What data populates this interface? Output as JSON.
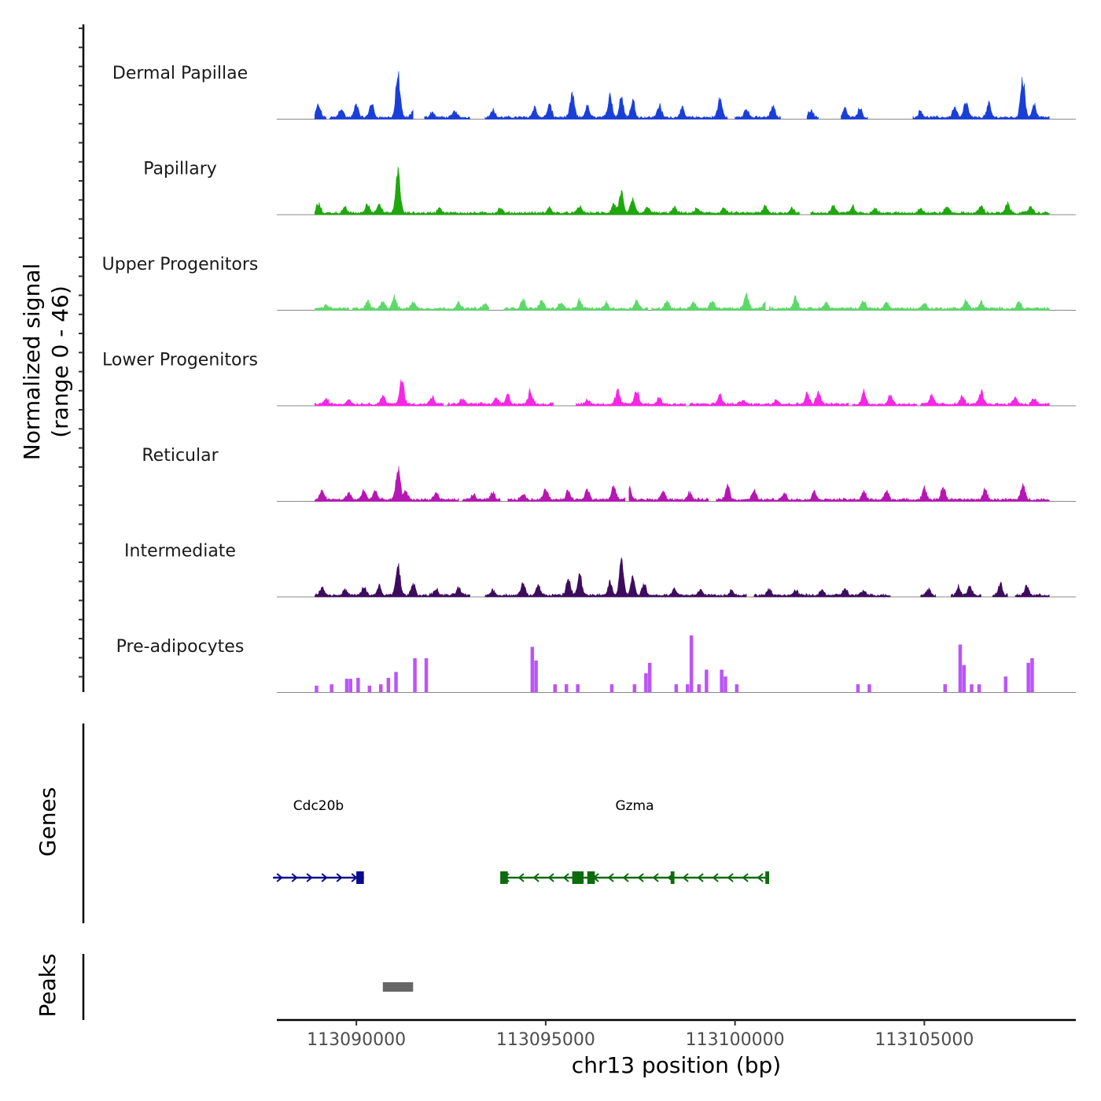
{
  "chart_data": {
    "type": "area",
    "title": "",
    "xlabel": "chr13 position (bp)",
    "ylabel": [
      "Normalized signal",
      "(range 0 - 46)"
    ],
    "y_range": [
      0,
      46
    ],
    "x_range": [
      113087900,
      113109000
    ],
    "x_ticks": [
      113090000,
      113095000,
      113100000,
      113105000
    ],
    "x_tick_labels": [
      "113090000",
      "113095000",
      "113100000",
      "113105000"
    ],
    "series": [
      {
        "name": "Dermal Papillae",
        "color": "#1a3fd9",
        "segments": [
          [
            113088900,
            113089200
          ],
          [
            113089300,
            113091500
          ],
          [
            113091800,
            113093000
          ],
          [
            113093400,
            113096600
          ],
          [
            113096600,
            113099800
          ],
          [
            113100000,
            113101200
          ],
          [
            113101900,
            113102200
          ],
          [
            113102800,
            113103500
          ],
          [
            113104700,
            113108300
          ]
        ],
        "peaks": [
          [
            113089000,
            0.28
          ],
          [
            113089600,
            0.22
          ],
          [
            113090000,
            0.28
          ],
          [
            113090400,
            0.32
          ],
          [
            113091100,
            1.0
          ],
          [
            113091500,
            0.15
          ],
          [
            113092000,
            0.12
          ],
          [
            113092600,
            0.15
          ],
          [
            113093600,
            0.18
          ],
          [
            113094700,
            0.22
          ],
          [
            113095100,
            0.28
          ],
          [
            113095700,
            0.52
          ],
          [
            113096100,
            0.25
          ],
          [
            113096700,
            0.5
          ],
          [
            113097000,
            0.45
          ],
          [
            113097300,
            0.38
          ],
          [
            113098000,
            0.28
          ],
          [
            113098600,
            0.2
          ],
          [
            113099600,
            0.42
          ],
          [
            113100300,
            0.2
          ],
          [
            113101000,
            0.25
          ],
          [
            113102000,
            0.18
          ],
          [
            113102900,
            0.22
          ],
          [
            113103300,
            0.2
          ],
          [
            113104900,
            0.15
          ],
          [
            113105800,
            0.25
          ],
          [
            113106100,
            0.35
          ],
          [
            113106700,
            0.3
          ],
          [
            113107600,
            0.9
          ],
          [
            113107900,
            0.3
          ]
        ]
      },
      {
        "name": "Papillary",
        "color": "#1ea80d",
        "segments": [
          [
            113088900,
            113095200
          ],
          [
            113095200,
            113101700
          ],
          [
            113102000,
            113108300
          ]
        ],
        "peaks": [
          [
            113089000,
            0.2
          ],
          [
            113089700,
            0.12
          ],
          [
            113090300,
            0.2
          ],
          [
            113090600,
            0.22
          ],
          [
            113091100,
            1.0
          ],
          [
            113092200,
            0.12
          ],
          [
            113093800,
            0.1
          ],
          [
            113095100,
            0.12
          ],
          [
            113095900,
            0.15
          ],
          [
            113096800,
            0.2
          ],
          [
            113097000,
            0.45
          ],
          [
            113097300,
            0.3
          ],
          [
            113097700,
            0.15
          ],
          [
            113098400,
            0.12
          ],
          [
            113099000,
            0.1
          ],
          [
            113099700,
            0.12
          ],
          [
            113100800,
            0.15
          ],
          [
            113101500,
            0.12
          ],
          [
            113102600,
            0.18
          ],
          [
            113103100,
            0.15
          ],
          [
            113103700,
            0.12
          ],
          [
            113104900,
            0.12
          ],
          [
            113105600,
            0.15
          ],
          [
            113106500,
            0.18
          ],
          [
            113107200,
            0.2
          ],
          [
            113107800,
            0.15
          ]
        ]
      },
      {
        "name": "Upper Progenitors",
        "color": "#5dd96a",
        "segments": [
          [
            113088900,
            113089800
          ],
          [
            113089900,
            113093500
          ],
          [
            113093900,
            113097700
          ],
          [
            113097800,
            113100800
          ],
          [
            113100900,
            113104700
          ],
          [
            113104700,
            113108300
          ]
        ],
        "peaks": [
          [
            113089200,
            0.08
          ],
          [
            113090300,
            0.15
          ],
          [
            113090700,
            0.18
          ],
          [
            113091000,
            0.25
          ],
          [
            113091500,
            0.15
          ],
          [
            113092700,
            0.12
          ],
          [
            113093400,
            0.1
          ],
          [
            113094400,
            0.22
          ],
          [
            113094900,
            0.2
          ],
          [
            113095400,
            0.15
          ],
          [
            113095900,
            0.18
          ],
          [
            113096600,
            0.12
          ],
          [
            113097400,
            0.18
          ],
          [
            113098200,
            0.18
          ],
          [
            113098900,
            0.15
          ],
          [
            113099400,
            0.18
          ],
          [
            113100300,
            0.32
          ],
          [
            113100800,
            0.15
          ],
          [
            113101600,
            0.25
          ],
          [
            113102400,
            0.15
          ],
          [
            113103400,
            0.18
          ],
          [
            113104000,
            0.15
          ],
          [
            113105000,
            0.12
          ],
          [
            113106100,
            0.2
          ],
          [
            113106500,
            0.15
          ],
          [
            113107500,
            0.15
          ]
        ]
      },
      {
        "name": "Lower Progenitors",
        "color": "#f527e5",
        "segments": [
          [
            113088900,
            113092300
          ],
          [
            113092400,
            113095200
          ],
          [
            113095800,
            113098700
          ],
          [
            113098800,
            113103000
          ],
          [
            113103100,
            113104800
          ],
          [
            113104900,
            113108300
          ]
        ],
        "peaks": [
          [
            113089200,
            0.12
          ],
          [
            113089800,
            0.1
          ],
          [
            113090700,
            0.18
          ],
          [
            113091200,
            0.55
          ],
          [
            113092000,
            0.15
          ],
          [
            113092800,
            0.12
          ],
          [
            113093700,
            0.15
          ],
          [
            113094000,
            0.22
          ],
          [
            113094600,
            0.3
          ],
          [
            113095300,
            0.1
          ],
          [
            113096100,
            0.1
          ],
          [
            113096900,
            0.3
          ],
          [
            113097400,
            0.32
          ],
          [
            113098000,
            0.15
          ],
          [
            113099600,
            0.2
          ],
          [
            113100200,
            0.1
          ],
          [
            113101100,
            0.12
          ],
          [
            113101900,
            0.25
          ],
          [
            113102200,
            0.3
          ],
          [
            113103400,
            0.28
          ],
          [
            113104100,
            0.2
          ],
          [
            113105200,
            0.2
          ],
          [
            113106000,
            0.18
          ],
          [
            113106500,
            0.28
          ],
          [
            113107400,
            0.15
          ],
          [
            113107900,
            0.12
          ]
        ]
      },
      {
        "name": "Reticular",
        "color": "#b616b3",
        "segments": [
          [
            113088900,
            113092700
          ],
          [
            113092800,
            113093800
          ],
          [
            113094000,
            113097100
          ],
          [
            113097200,
            113099300
          ],
          [
            113099500,
            113108300
          ]
        ],
        "peaks": [
          [
            113089100,
            0.2
          ],
          [
            113089800,
            0.15
          ],
          [
            113090200,
            0.22
          ],
          [
            113090500,
            0.2
          ],
          [
            113091100,
            0.7
          ],
          [
            113091300,
            0.2
          ],
          [
            113092100,
            0.15
          ],
          [
            113093100,
            0.12
          ],
          [
            113093600,
            0.15
          ],
          [
            113094400,
            0.12
          ],
          [
            113095000,
            0.28
          ],
          [
            113095600,
            0.2
          ],
          [
            113096100,
            0.25
          ],
          [
            113096800,
            0.3
          ],
          [
            113097200,
            0.28
          ],
          [
            113098100,
            0.18
          ],
          [
            113098800,
            0.15
          ],
          [
            113099800,
            0.35
          ],
          [
            113100500,
            0.2
          ],
          [
            113101300,
            0.15
          ],
          [
            113102100,
            0.18
          ],
          [
            113103400,
            0.18
          ],
          [
            113104000,
            0.2
          ],
          [
            113105000,
            0.25
          ],
          [
            113105500,
            0.3
          ],
          [
            113106600,
            0.22
          ],
          [
            113107600,
            0.35
          ]
        ]
      },
      {
        "name": "Intermediate",
        "color": "#3e0c5e",
        "segments": [
          [
            113088900,
            113093000
          ],
          [
            113093400,
            113100300
          ],
          [
            113100500,
            113104100
          ],
          [
            113104900,
            113105300
          ],
          [
            113105700,
            113106500
          ],
          [
            113106800,
            113107200
          ],
          [
            113107400,
            113108300
          ]
        ],
        "peaks": [
          [
            113089100,
            0.2
          ],
          [
            113089700,
            0.12
          ],
          [
            113090200,
            0.18
          ],
          [
            113090600,
            0.2
          ],
          [
            113091100,
            0.75
          ],
          [
            113091500,
            0.25
          ],
          [
            113092100,
            0.15
          ],
          [
            113092700,
            0.18
          ],
          [
            113093600,
            0.12
          ],
          [
            113094400,
            0.25
          ],
          [
            113094800,
            0.22
          ],
          [
            113095600,
            0.38
          ],
          [
            113095900,
            0.45
          ],
          [
            113096700,
            0.3
          ],
          [
            113097000,
            0.8
          ],
          [
            113097300,
            0.4
          ],
          [
            113097600,
            0.25
          ],
          [
            113098400,
            0.15
          ],
          [
            113099100,
            0.12
          ],
          [
            113099900,
            0.1
          ],
          [
            113100900,
            0.12
          ],
          [
            113101600,
            0.1
          ],
          [
            113102300,
            0.12
          ],
          [
            113102900,
            0.15
          ],
          [
            113103400,
            0.1
          ],
          [
            113105100,
            0.15
          ],
          [
            113105900,
            0.2
          ],
          [
            113106200,
            0.18
          ],
          [
            113107000,
            0.25
          ],
          [
            113107700,
            0.2
          ]
        ]
      },
      {
        "name": "Pre-adipocytes",
        "color": "#bb55f7",
        "bars": [
          [
            113088900,
            0.15
          ],
          [
            113089300,
            0.18
          ],
          [
            113089700,
            0.3
          ],
          [
            113089800,
            0.3
          ],
          [
            113090000,
            0.32
          ],
          [
            113090300,
            0.15
          ],
          [
            113090600,
            0.18
          ],
          [
            113090800,
            0.32
          ],
          [
            113091000,
            0.45
          ],
          [
            113091500,
            0.75
          ],
          [
            113091800,
            0.75
          ],
          [
            113094600,
            1.0
          ],
          [
            113094700,
            0.7
          ],
          [
            113095200,
            0.18
          ],
          [
            113095500,
            0.18
          ],
          [
            113095800,
            0.18
          ],
          [
            113096700,
            0.18
          ],
          [
            113097300,
            0.18
          ],
          [
            113097600,
            0.42
          ],
          [
            113097700,
            0.65
          ],
          [
            113098400,
            0.18
          ],
          [
            113098700,
            0.18
          ],
          [
            113098800,
            1.25
          ],
          [
            113099000,
            0.18
          ],
          [
            113099200,
            0.5
          ],
          [
            113099600,
            0.5
          ],
          [
            113099700,
            0.35
          ],
          [
            113100000,
            0.18
          ],
          [
            113103200,
            0.18
          ],
          [
            113103500,
            0.18
          ],
          [
            113105500,
            0.18
          ],
          [
            113105900,
            1.05
          ],
          [
            113106000,
            0.6
          ],
          [
            113106200,
            0.18
          ],
          [
            113106400,
            0.18
          ],
          [
            113107100,
            0.35
          ],
          [
            113107700,
            0.65
          ],
          [
            113107800,
            0.75
          ]
        ]
      }
    ],
    "genes": [
      {
        "name": "Cdc20b",
        "strand": "+",
        "start": 113087800,
        "end": 113090200,
        "color": "#0a0a8c",
        "exons": [
          [
            113090000,
            113090200
          ]
        ]
      },
      {
        "name": "Gzma",
        "strand": "-",
        "start": 113093800,
        "end": 113100900,
        "color": "#0d6b0d",
        "exons": [
          [
            113093800,
            113094000
          ],
          [
            113095700,
            113096000
          ],
          [
            113096100,
            113096300
          ],
          [
            113098300,
            113098400
          ],
          [
            113100800,
            113100900
          ]
        ]
      }
    ],
    "peaks_track": [
      [
        113090700,
        113091500
      ]
    ],
    "panel_labels": {
      "genes": "Genes",
      "peaks": "Peaks"
    }
  }
}
